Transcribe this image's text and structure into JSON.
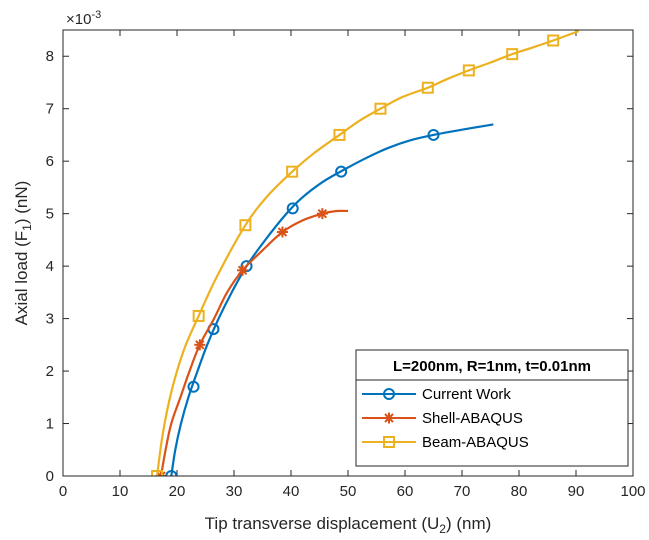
{
  "chart_data": {
    "type": "line",
    "xlabel": {
      "main": "Tip transverse displacement (U",
      "sub": "2",
      "tail": ") (nm)"
    },
    "ylabel": {
      "main": "Axial load (F",
      "sub": "1",
      "tail": ") (nN)"
    },
    "exponent": {
      "base": "×10",
      "power": "-3"
    },
    "xlim": [
      0,
      100
    ],
    "ylim": [
      0,
      8.5
    ],
    "xticks": [
      "0",
      "10",
      "20",
      "30",
      "40",
      "50",
      "60",
      "70",
      "80",
      "90",
      "100"
    ],
    "yticks": [
      "0",
      "1",
      "2",
      "3",
      "4",
      "5",
      "6",
      "7",
      "8"
    ],
    "grid": false,
    "legend": {
      "title": "L=200nm, R=1nm, t=0.01nm",
      "position": "bottom-right",
      "entries": [
        "Current Work",
        "Shell-ABAQUS",
        "Beam-ABAQUS"
      ]
    },
    "series": [
      {
        "name": "Current Work",
        "color": "#0072BD",
        "marker": "circle",
        "curve": [
          [
            19.0,
            0
          ],
          [
            19.7,
            0.5
          ],
          [
            20.7,
            1.0
          ],
          [
            22.0,
            1.5
          ],
          [
            23.6,
            2.0
          ],
          [
            25.3,
            2.5
          ],
          [
            27.3,
            3.0
          ],
          [
            29.6,
            3.5
          ],
          [
            32.2,
            4.0
          ],
          [
            35.5,
            4.5
          ],
          [
            39.2,
            5.0
          ],
          [
            41.9,
            5.3
          ],
          [
            45.5,
            5.6
          ],
          [
            49.0,
            5.82
          ],
          [
            53.0,
            6.05
          ],
          [
            57.0,
            6.25
          ],
          [
            61.0,
            6.4
          ],
          [
            65.0,
            6.5
          ],
          [
            70.0,
            6.6
          ],
          [
            75.5,
            6.7
          ]
        ],
        "markers": [
          [
            19.0,
            0
          ],
          [
            22.9,
            1.7
          ],
          [
            26.4,
            2.8
          ],
          [
            32.2,
            4.0
          ],
          [
            40.3,
            5.1
          ],
          [
            48.8,
            5.8
          ],
          [
            65.0,
            6.5
          ]
        ]
      },
      {
        "name": "Shell-ABAQUS",
        "color": "#D95319",
        "marker": "asterisk",
        "curve": [
          [
            17.2,
            0
          ],
          [
            18.0,
            0.5
          ],
          [
            19.0,
            1.0
          ],
          [
            20.6,
            1.5
          ],
          [
            22.2,
            2.0
          ],
          [
            24.0,
            2.5
          ],
          [
            26.5,
            3.0
          ],
          [
            28.8,
            3.5
          ],
          [
            31.5,
            3.92
          ],
          [
            35.0,
            4.3
          ],
          [
            38.5,
            4.65
          ],
          [
            42.0,
            4.87
          ],
          [
            45.5,
            5.0
          ],
          [
            48.0,
            5.05
          ],
          [
            50.0,
            5.05
          ]
        ],
        "markers": [
          [
            17.2,
            0
          ],
          [
            24.0,
            2.5
          ],
          [
            31.5,
            3.92
          ],
          [
            38.5,
            4.65
          ],
          [
            45.5,
            5.0
          ]
        ]
      },
      {
        "name": "Beam-ABAQUS",
        "color": "#EDB120",
        "marker": "square",
        "curve": [
          [
            16.5,
            0
          ],
          [
            17.5,
            0.8
          ],
          [
            19.0,
            1.6
          ],
          [
            21.2,
            2.4
          ],
          [
            23.8,
            3.05
          ],
          [
            27.0,
            3.8
          ],
          [
            32.0,
            4.78
          ],
          [
            36.0,
            5.35
          ],
          [
            40.2,
            5.8
          ],
          [
            44.0,
            6.15
          ],
          [
            48.5,
            6.5
          ],
          [
            52.0,
            6.77
          ],
          [
            55.7,
            7.0
          ],
          [
            59.5,
            7.22
          ],
          [
            64.0,
            7.4
          ],
          [
            67.5,
            7.57
          ],
          [
            71.2,
            7.73
          ],
          [
            75.0,
            7.88
          ],
          [
            78.8,
            8.04
          ],
          [
            82.5,
            8.17
          ],
          [
            86.0,
            8.3
          ],
          [
            90.5,
            8.48
          ]
        ],
        "markers": [
          [
            16.5,
            0
          ],
          [
            23.8,
            3.05
          ],
          [
            32.0,
            4.78
          ],
          [
            40.2,
            5.8
          ],
          [
            48.5,
            6.5
          ],
          [
            55.7,
            7.0
          ],
          [
            64.0,
            7.4
          ],
          [
            71.2,
            7.73
          ],
          [
            78.8,
            8.04
          ],
          [
            86.0,
            8.3
          ]
        ]
      }
    ]
  }
}
